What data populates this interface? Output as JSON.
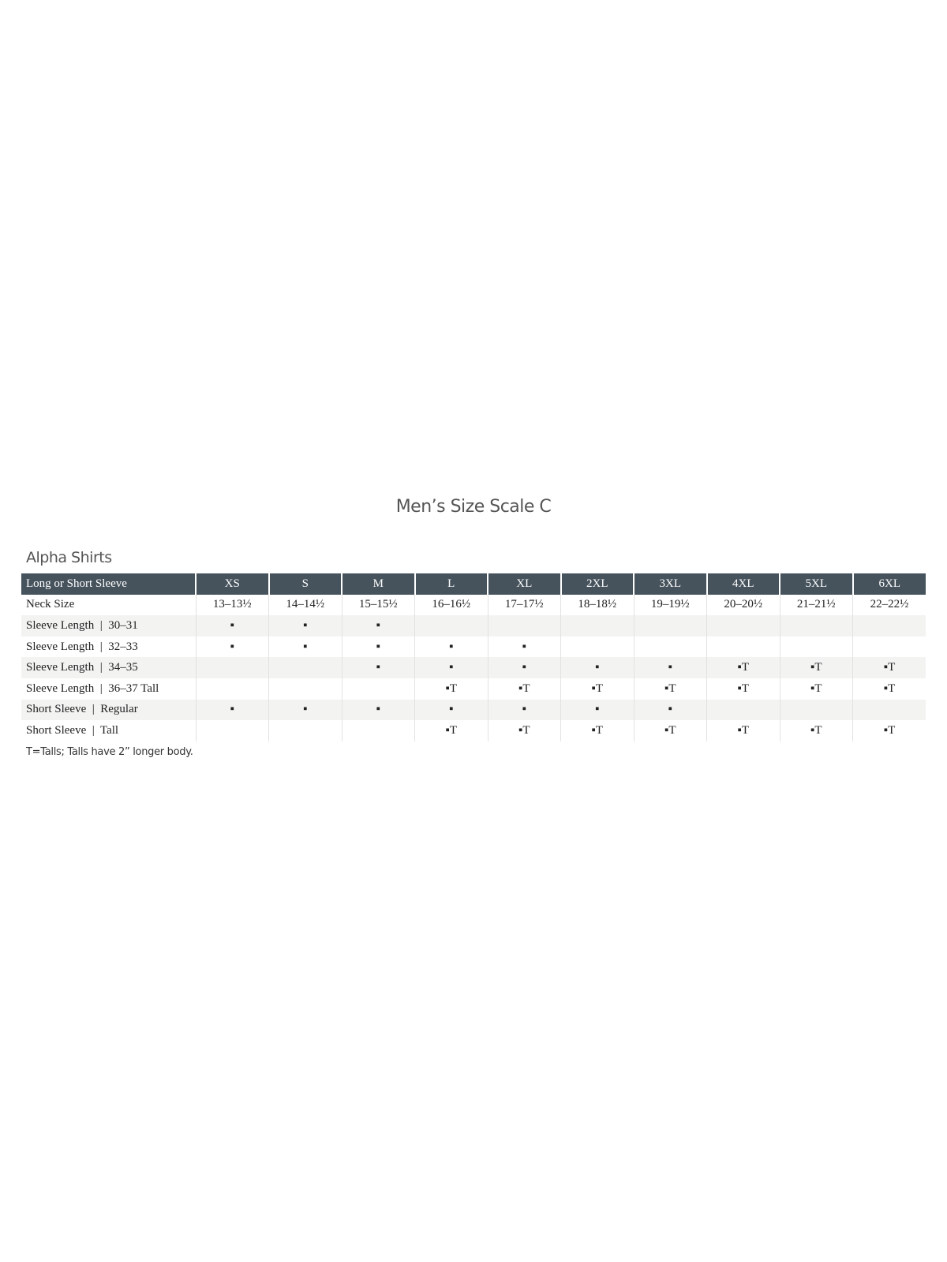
{
  "title": "Men’s Size Scale C",
  "subtitle": "Alpha Shirts",
  "table": {
    "header_label": "Long or Short Sleeve",
    "sizes": [
      "XS",
      "S",
      "M",
      "L",
      "XL",
      "2XL",
      "3XL",
      "4XL",
      "5XL",
      "6XL"
    ],
    "rows": [
      {
        "label": "Neck Size",
        "cells": [
          "13–13½",
          "14–14½",
          "15–15½",
          "16–16½",
          "17–17½",
          "18–18½",
          "19–19½",
          "20–20½",
          "21–21½",
          "22–22½"
        ]
      },
      {
        "label": "Sleeve Length  |  30–31",
        "cells": [
          "▪",
          "▪",
          "▪",
          "",
          "",
          "",
          "",
          "",
          "",
          ""
        ]
      },
      {
        "label": "Sleeve Length  |  32–33",
        "cells": [
          "▪",
          "▪",
          "▪",
          "▪",
          "▪",
          "",
          "",
          "",
          "",
          ""
        ]
      },
      {
        "label": "Sleeve Length  |  34–35",
        "cells": [
          "",
          "",
          "▪",
          "▪",
          "▪",
          "▪",
          "▪",
          "▪T",
          "▪T",
          "▪T"
        ]
      },
      {
        "label": "Sleeve Length  |  36–37 Tall",
        "cells": [
          "",
          "",
          "",
          "▪T",
          "▪T",
          "▪T",
          "▪T",
          "▪T",
          "▪T",
          "▪T"
        ]
      },
      {
        "label": "Short Sleeve  |  Regular",
        "cells": [
          "▪",
          "▪",
          "▪",
          "▪",
          "▪",
          "▪",
          "▪",
          "",
          "",
          ""
        ]
      },
      {
        "label": "Short Sleeve  |  Tall",
        "cells": [
          "",
          "",
          "",
          "▪T",
          "▪T",
          "▪T",
          "▪T",
          "▪T",
          "▪T",
          "▪T"
        ]
      }
    ]
  },
  "footnote": "T=Talls; Talls have 2” longer body.",
  "colors": {
    "header_bg": "#46535d",
    "stripe_bg": "#f3f3f2"
  }
}
